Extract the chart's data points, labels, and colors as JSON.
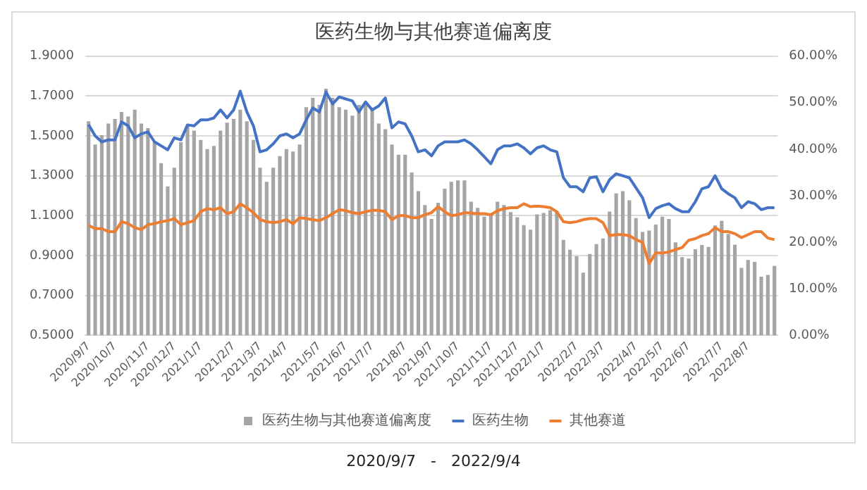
{
  "chart_data": {
    "type": "bar",
    "title": "医药生物与其他赛道偏离度",
    "categories": [
      "2020/9/7",
      null,
      null,
      null,
      "2020/10/7",
      null,
      null,
      null,
      null,
      "2020/11/7",
      null,
      null,
      null,
      "2020/12/7",
      null,
      null,
      null,
      "2021/1/7",
      null,
      null,
      null,
      null,
      "2021/2/7",
      null,
      null,
      null,
      "2021/3/7",
      null,
      null,
      null,
      "2021/4/7",
      null,
      null,
      null,
      null,
      "2021/5/7",
      null,
      null,
      null,
      "2021/6/7",
      null,
      null,
      null,
      "2021/7/7",
      null,
      null,
      null,
      null,
      "2021/8/7",
      null,
      null,
      null,
      "2021/9/7",
      null,
      null,
      null,
      "2021/10/7",
      null,
      null,
      null,
      null,
      "2021/11/7",
      null,
      null,
      null,
      "2021/12/7",
      null,
      null,
      null,
      "2022/1/7",
      null,
      null,
      null,
      null,
      "2022/2/7",
      null,
      null,
      null,
      "2022/3/7",
      null,
      null,
      null,
      null,
      "2022/4/7",
      null,
      null,
      null,
      "2022/5/7",
      null,
      null,
      null,
      "2022/6/7",
      null,
      null,
      null,
      null,
      "2022/7/7",
      null,
      null,
      null,
      "2022/8/7",
      null,
      null,
      null,
      null
    ],
    "series": [
      {
        "name": "医药生物与其他赛道偏离度",
        "axis": "y2",
        "color": "#a5a5a5",
        "values": [
          46,
          41,
          43,
          45.5,
          46.5,
          48,
          47,
          48.5,
          45.5,
          44.5,
          41.5,
          37,
          32,
          36,
          41.5,
          45,
          44,
          42,
          40,
          40.7,
          44,
          45.7,
          46.5,
          48.5,
          46,
          42,
          36,
          33,
          36,
          38.5,
          40,
          39.5,
          41,
          49,
          51,
          49.5,
          53,
          51,
          49,
          48.5,
          47.2,
          49.5,
          49.8,
          48.5,
          45.5,
          44.3,
          41,
          38.8,
          38.8,
          35,
          31,
          28,
          25,
          28.5,
          31.5,
          33,
          33.3,
          33.3,
          28.7,
          27.4,
          25.5,
          26,
          28.7,
          28,
          26.5,
          25.4,
          23.7,
          22.7,
          26,
          26.3,
          26.9,
          26.5,
          20.5,
          18.4,
          17,
          13.5,
          17.5,
          19.6,
          20.8,
          26.6,
          30.5,
          31,
          29,
          25.2,
          22.2,
          22.5,
          23.8,
          25.5,
          25,
          20,
          16.8,
          16.5,
          18.5,
          19.4,
          19,
          23.6,
          24.6,
          21.8,
          19.5,
          14.5,
          16.2,
          15.8,
          12.6,
          13,
          14.9
        ]
      },
      {
        "name": "医药生物",
        "type": "line",
        "color": "#4472c4",
        "values": [
          1.556,
          1.5,
          1.47,
          1.48,
          1.48,
          1.57,
          1.55,
          1.49,
          1.51,
          1.52,
          1.47,
          1.45,
          1.43,
          1.49,
          1.48,
          1.555,
          1.55,
          1.58,
          1.58,
          1.59,
          1.63,
          1.59,
          1.63,
          1.724,
          1.62,
          1.55,
          1.42,
          1.43,
          1.46,
          1.5,
          1.51,
          1.49,
          1.51,
          1.58,
          1.64,
          1.62,
          1.72,
          1.66,
          1.695,
          1.685,
          1.675,
          1.62,
          1.67,
          1.63,
          1.65,
          1.69,
          1.54,
          1.57,
          1.56,
          1.5,
          1.42,
          1.43,
          1.4,
          1.45,
          1.47,
          1.47,
          1.47,
          1.48,
          1.46,
          1.43,
          1.395,
          1.36,
          1.43,
          1.45,
          1.45,
          1.46,
          1.44,
          1.41,
          1.44,
          1.45,
          1.43,
          1.42,
          1.29,
          1.245,
          1.245,
          1.22,
          1.29,
          1.295,
          1.22,
          1.28,
          1.31,
          1.3,
          1.29,
          1.24,
          1.19,
          1.09,
          1.135,
          1.15,
          1.16,
          1.135,
          1.12,
          1.12,
          1.17,
          1.235,
          1.245,
          1.3,
          1.235,
          1.21,
          1.19,
          1.14,
          1.17,
          1.16,
          1.13,
          1.14,
          1.14
        ]
      },
      {
        "name": "其他赛道",
        "type": "line",
        "color": "#ed7d31",
        "values": [
          1.052,
          1.035,
          1.035,
          1.02,
          1.02,
          1.07,
          1.06,
          1.04,
          1.03,
          1.055,
          1.06,
          1.07,
          1.075,
          1.085,
          1.055,
          1.065,
          1.075,
          1.12,
          1.135,
          1.13,
          1.14,
          1.11,
          1.12,
          1.16,
          1.14,
          1.115,
          1.08,
          1.07,
          1.065,
          1.07,
          1.08,
          1.06,
          1.09,
          1.085,
          1.08,
          1.075,
          1.09,
          1.11,
          1.13,
          1.125,
          1.115,
          1.11,
          1.12,
          1.127,
          1.127,
          1.12,
          1.08,
          1.1,
          1.1,
          1.09,
          1.09,
          1.105,
          1.115,
          1.145,
          1.12,
          1.1,
          1.105,
          1.115,
          1.113,
          1.11,
          1.11,
          1.105,
          1.125,
          1.135,
          1.14,
          1.14,
          1.16,
          1.145,
          1.148,
          1.145,
          1.14,
          1.12,
          1.07,
          1.065,
          1.07,
          1.08,
          1.085,
          1.085,
          1.065,
          1.0,
          1.005,
          1.005,
          1.0,
          0.98,
          0.967,
          0.86,
          0.913,
          0.913,
          0.918,
          0.93,
          0.94,
          0.977,
          0.985,
          1.0,
          1.01,
          1.04,
          1.02,
          1.02,
          1.01,
          0.99,
          1.005,
          1.02,
          1.02,
          0.988,
          0.98
        ]
      }
    ],
    "ylim": [
      0.5,
      1.9
    ],
    "yticks": [
      {
        "value": 0.5,
        "label": "0.5000"
      },
      {
        "value": 0.7,
        "label": "0.7000"
      },
      {
        "value": 0.9,
        "label": "0.9000"
      },
      {
        "value": 1.1,
        "label": "1.1000"
      },
      {
        "value": 1.3,
        "label": "1.3000"
      },
      {
        "value": 1.5,
        "label": "1.5000"
      },
      {
        "value": 1.7,
        "label": "1.7000"
      },
      {
        "value": 1.9,
        "label": "1.9000"
      }
    ],
    "y2lim": [
      0,
      60
    ],
    "y2ticks": [
      {
        "value": 0,
        "label": "0.00%"
      },
      {
        "value": 10,
        "label": "10.00%"
      },
      {
        "value": 20,
        "label": "20.00%"
      },
      {
        "value": 30,
        "label": "30.00%"
      },
      {
        "value": 40,
        "label": "40.00%"
      },
      {
        "value": 50,
        "label": "50.00%"
      },
      {
        "value": 60,
        "label": "60.00%"
      }
    ],
    "grid": "y",
    "legend": "bottom",
    "marker": "none",
    "line_style": "solid",
    "annotations": [
      "2020/9/7   -   2022/9/4"
    ]
  }
}
